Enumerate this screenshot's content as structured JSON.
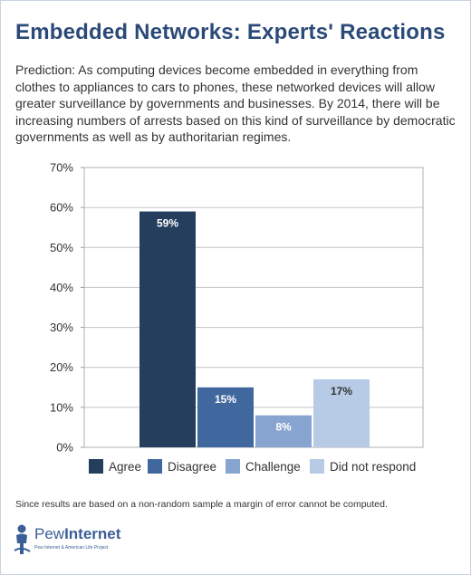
{
  "title": "Embedded Networks: Experts' Reactions",
  "subtitle": "Prediction: As computing devices become embedded in everything from clothes to appliances to cars to phones, these networked devices will allow greater surveillance by governments and businesses. By 2014, there will be increasing numbers of arrests based on this kind of surveillance by democratic governments as well as by authoritarian regimes.",
  "footnote": "Since results are based on a non-random sample a margin of error cannot be computed.",
  "logo": {
    "name_light": "Pew",
    "name_bold": "Internet",
    "tagline": "Pew Internet & American Life Project",
    "color": "#3a5f96"
  },
  "colors": {
    "title": "#2b4a78",
    "gridline": "#c4c4c4",
    "frame": "#c9d3e0"
  },
  "chart_data": {
    "type": "bar",
    "title": "",
    "xlabel": "",
    "ylabel": "",
    "ylim": [
      0,
      70
    ],
    "y_ticks": [
      0,
      10,
      20,
      30,
      40,
      50,
      60,
      70
    ],
    "y_tick_labels": [
      "0%",
      "10%",
      "20%",
      "30%",
      "40%",
      "50%",
      "60%",
      "70%"
    ],
    "grid": true,
    "legend_position": "bottom",
    "series": [
      {
        "name": "Agree",
        "value": 59,
        "label": "59%",
        "color": "#253e5e",
        "label_color": "#ffffff"
      },
      {
        "name": "Disagree",
        "value": 15,
        "label": "15%",
        "color": "#41679f",
        "label_color": "#ffffff"
      },
      {
        "name": "Challenge",
        "value": 8,
        "label": "8%",
        "color": "#88a4d0",
        "label_color": "#ffffff"
      },
      {
        "name": "Did not respond",
        "value": 17,
        "label": "17%",
        "color": "#b7cbe6",
        "label_color": "#333333"
      }
    ]
  }
}
